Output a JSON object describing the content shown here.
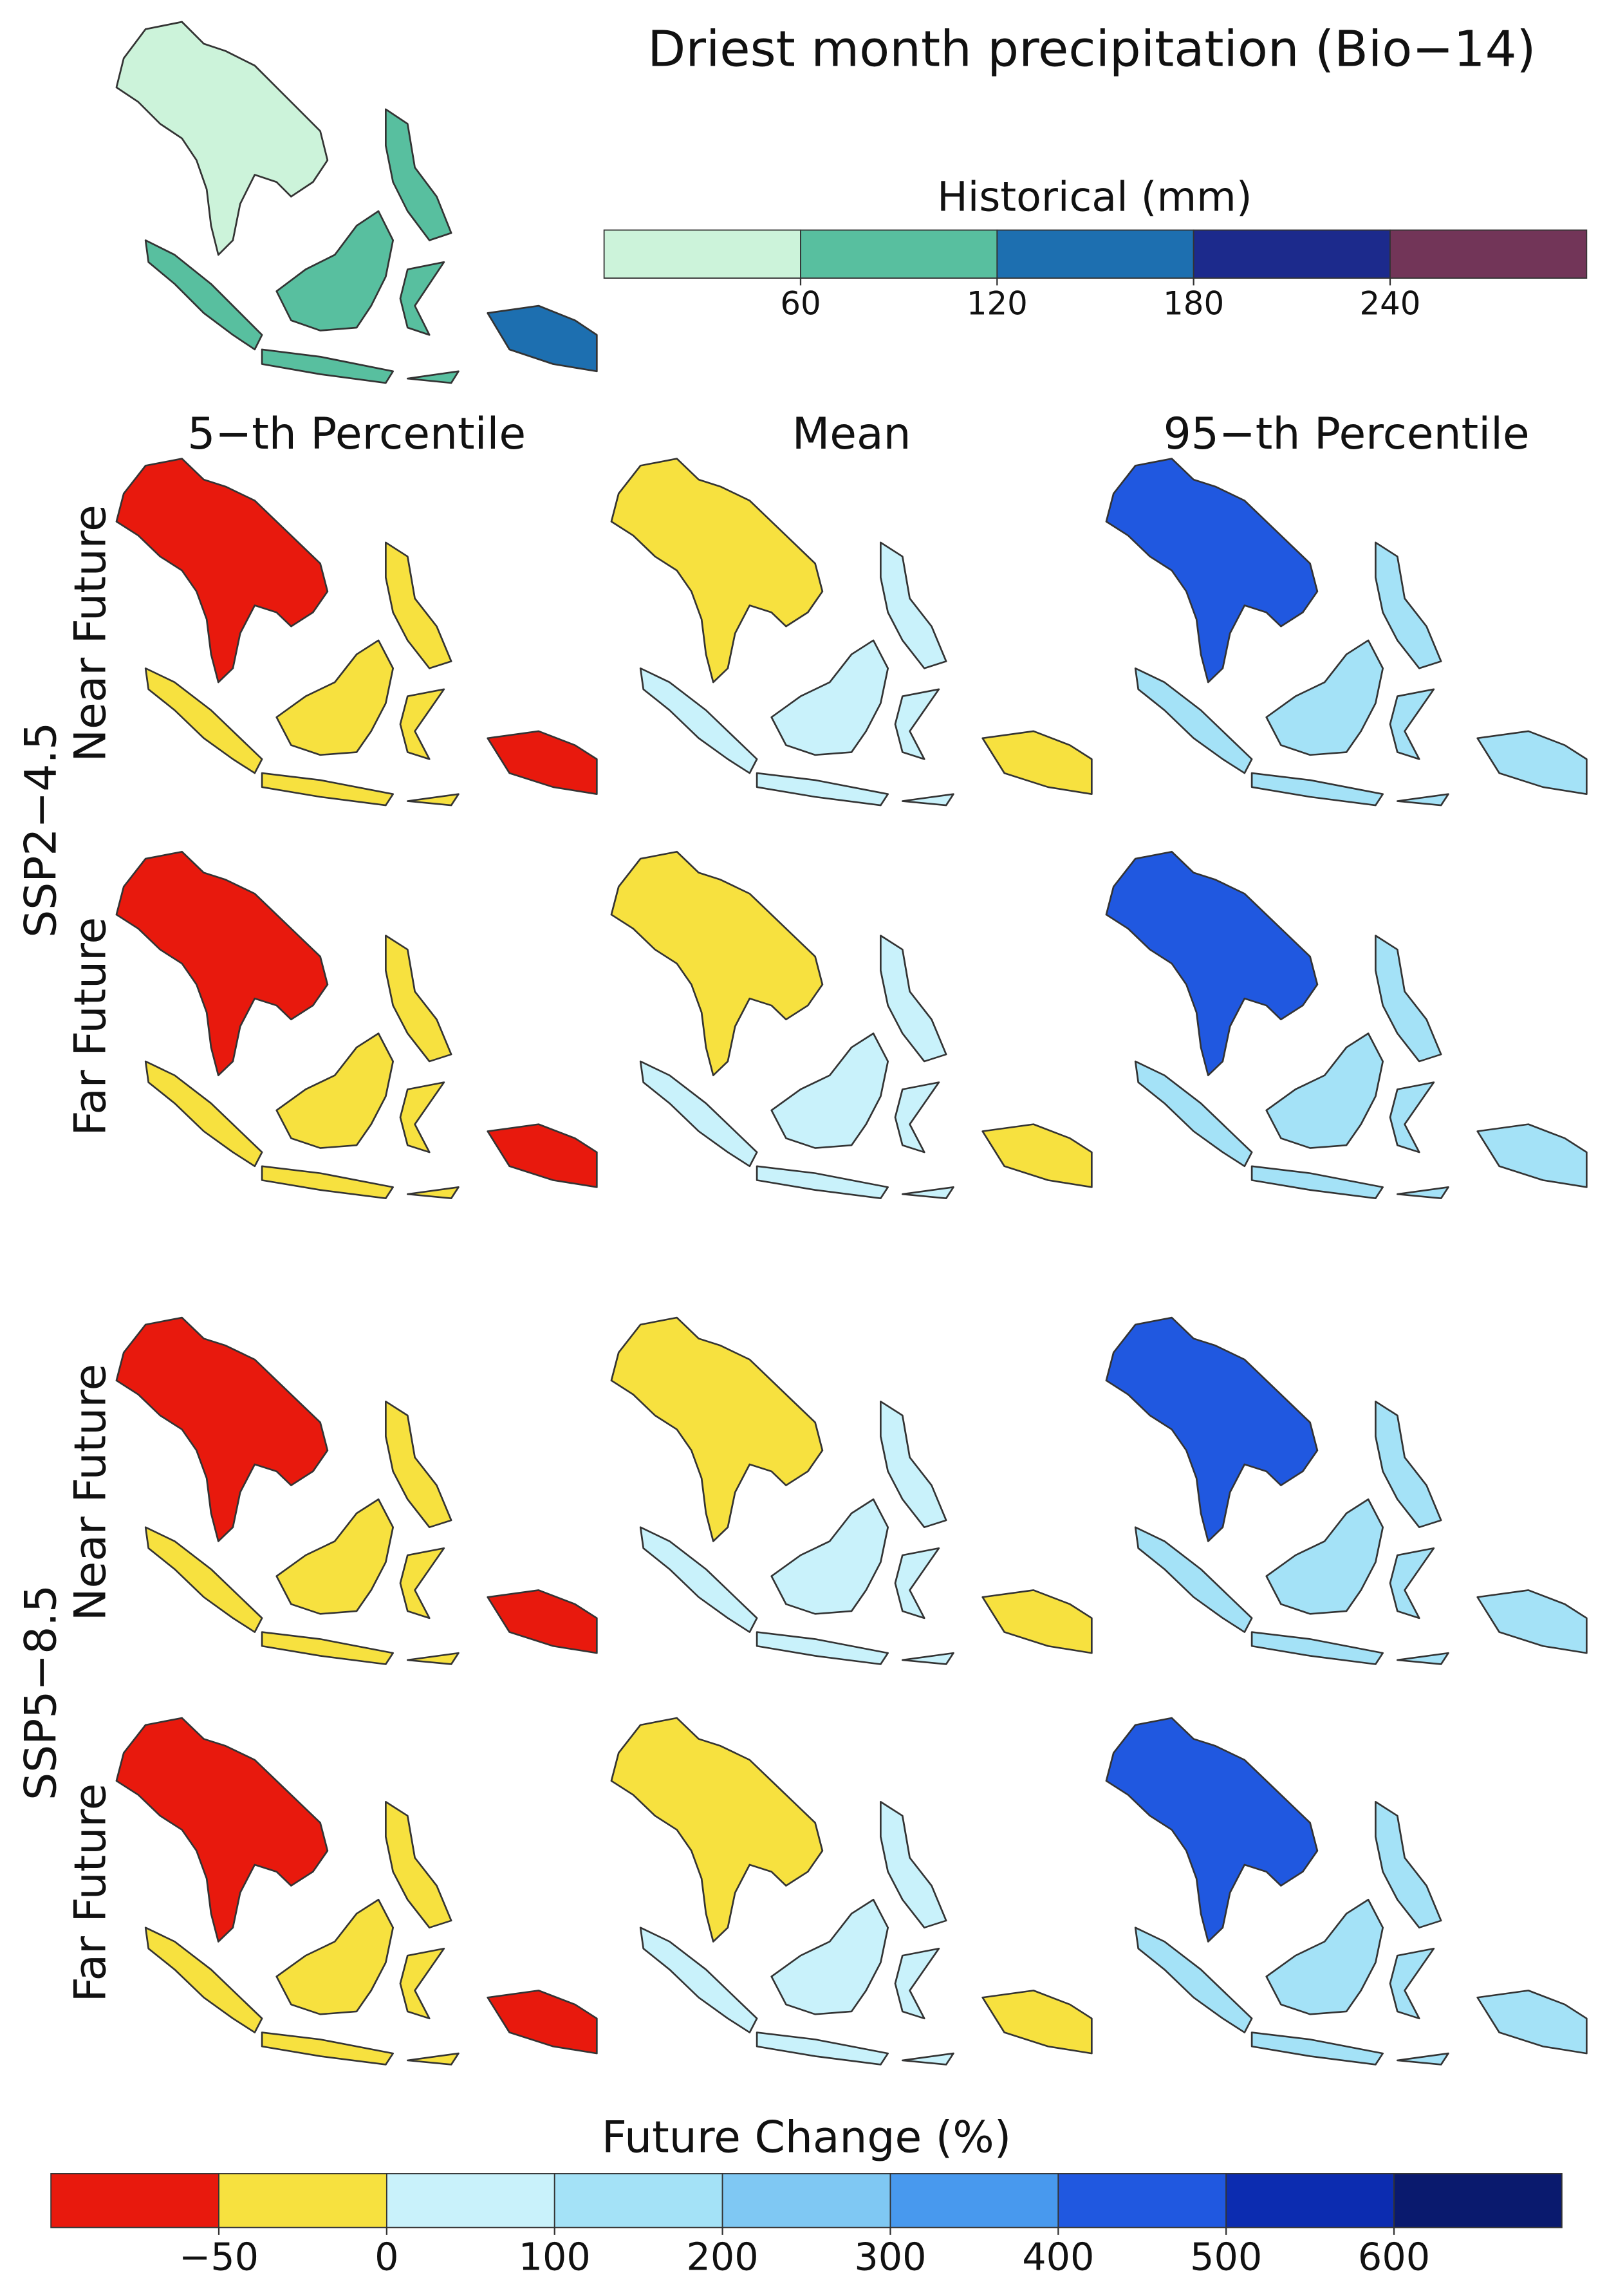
{
  "title": "Driest month precipitation (Bio−14)",
  "historical_colorbar": {
    "label": "Historical (mm)",
    "bounds": [
      0,
      60,
      120,
      180,
      240,
      300
    ],
    "colors": [
      "#ccf3da",
      "#58bf9f",
      "#1d6fb0",
      "#1c2a8c",
      "#723558"
    ],
    "ticks": [
      60,
      120,
      180,
      240
    ]
  },
  "column_titles": [
    "5−th Percentile",
    "Mean",
    "95−th Percentile"
  ],
  "scenarios": [
    {
      "name": "SSP2−4.5",
      "rows": [
        "Near Future",
        "Far Future"
      ]
    },
    {
      "name": "SSP5−8.5",
      "rows": [
        "Near Future",
        "Far Future"
      ]
    }
  ],
  "future_colorbar": {
    "label": "Future Change (%)",
    "bounds": [
      -100,
      -50,
      0,
      100,
      200,
      300,
      400,
      500,
      600,
      700
    ],
    "colors": [
      "#e8190d",
      "#f7e13f",
      "#c9f2fb",
      "#a4e2f7",
      "#7fc8f3",
      "#4899ee",
      "#2058e0",
      "#0c2cb0",
      "#0a1a6e"
    ],
    "ticks": [
      {
        "value": -50,
        "label": "−50"
      },
      0,
      100,
      200,
      300,
      400,
      500,
      600
    ]
  }
}
